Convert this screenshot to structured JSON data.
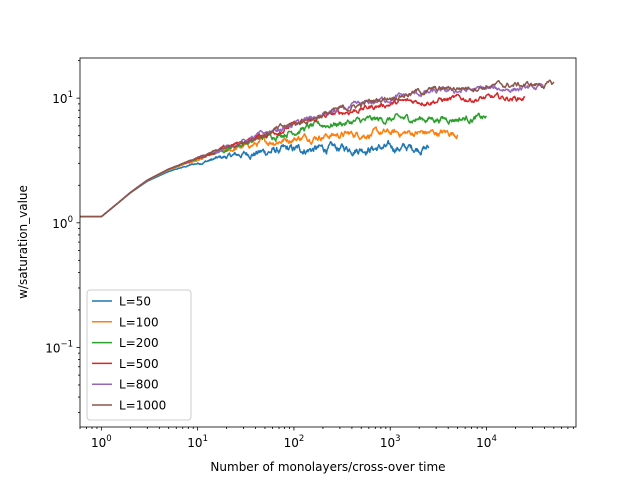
{
  "chart_data": {
    "type": "line",
    "title": "",
    "xlabel": "Number of monolayers/cross-over time",
    "ylabel": "w/saturation_value",
    "xscale": "log",
    "yscale": "log",
    "xlim": [
      0.6,
      85000
    ],
    "ylim": [
      0.023,
      21
    ],
    "grid": false,
    "legend_position": "lower-left",
    "x_ticks": [
      {
        "value": 1,
        "base": "10",
        "exp": "0"
      },
      {
        "value": 10,
        "base": "10",
        "exp": "1"
      },
      {
        "value": 100,
        "base": "10",
        "exp": "2"
      },
      {
        "value": 1000,
        "base": "10",
        "exp": "3"
      },
      {
        "value": 10000,
        "base": "10",
        "exp": "4"
      }
    ],
    "y_ticks": [
      {
        "value": 0.1,
        "base": "10",
        "exp": "−1"
      },
      {
        "value": 1,
        "base": "10",
        "exp": "0"
      },
      {
        "value": 10,
        "base": "10",
        "exp": "1"
      }
    ],
    "series": [
      {
        "name": "L=50",
        "color": "#1f77b4",
        "x_end": 2500,
        "saturation": 4.0,
        "noise": 0.04
      },
      {
        "name": "L=100",
        "color": "#ff7f0e",
        "x_end": 5000,
        "saturation": 5.3,
        "noise": 0.035
      },
      {
        "name": "L=200",
        "color": "#2ca02c",
        "x_end": 10000,
        "saturation": 7.0,
        "noise": 0.035
      },
      {
        "name": "L=500",
        "color": "#d62728",
        "x_end": 25000,
        "saturation": 10.5,
        "noise": 0.03
      },
      {
        "name": "L=800",
        "color": "#9467bd",
        "x_end": 40000,
        "saturation": 13.3,
        "noise": 0.03
      },
      {
        "name": "L=1000",
        "color": "#8c564b",
        "x_end": 50000,
        "saturation": 14.8,
        "noise": 0.03
      }
    ],
    "common_curve": {
      "x": [
        0.6,
        1,
        1.5,
        2,
        3,
        5,
        10,
        20,
        50,
        100,
        200,
        500,
        1000,
        2000,
        5000,
        10000,
        20000,
        50000
      ],
      "y": [
        1.12,
        1.12,
        1.45,
        1.75,
        2.2,
        2.7,
        3.3,
        4.05,
        5.2,
        6.2,
        7.5,
        9.2,
        11,
        12.5,
        14,
        15,
        15.5,
        16
      ]
    }
  }
}
